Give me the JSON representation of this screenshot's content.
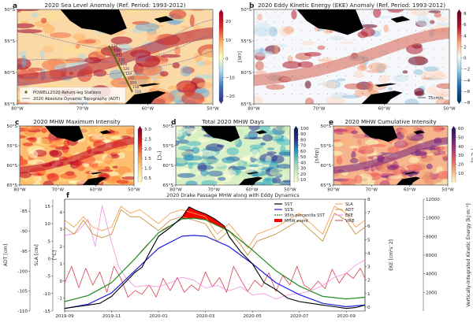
{
  "figure": {
    "lon_ticks": [
      "80°W",
      "70°W",
      "60°W",
      "50°W"
    ],
    "lat_ticks": [
      "50°S",
      "55°S",
      "60°S",
      "65°S"
    ]
  },
  "panels": {
    "a": {
      "label": "a",
      "title": "2020 Sea Level Anomaly (Ref. Period: 1993-2012)",
      "colorbar_label": "[cm]",
      "colorbar_ticks": [
        "20",
        "10",
        "0",
        "−10",
        "−20"
      ],
      "legend": [
        "POWELL2020 Return-leg Stations",
        "2020 Absolute Dynamic Topography (ADT)"
      ],
      "station_labels": [
        "136",
        "134",
        "132",
        "130",
        "128",
        "126",
        "124",
        "122",
        "120",
        "118",
        "116"
      ],
      "contour_labels": [
        "25 cm",
        "25 cm",
        "-50 cm",
        "0 cm",
        "25 cm"
      ]
    },
    "b": {
      "label": "b",
      "title": "2020 Eddy Kinetic Energy (EKE) Anomaly (Ref. Period: 1993-2012)",
      "colorbar_label": "[cm²s⁻²]",
      "colorbar_ticks": [
        "8",
        "6",
        "4",
        "2",
        "0",
        "−2",
        "−4",
        "−6",
        "−8"
      ],
      "vector_scale": "75cm/s"
    },
    "c": {
      "label": "c",
      "title": "2020 MHW Maximum Intensity",
      "colorbar_label": "[°C]",
      "colorbar_ticks": [
        "3.0",
        "2.5",
        "2.0",
        "1.5",
        "1.0",
        "0.5"
      ]
    },
    "d": {
      "label": "d",
      "title": "Total 2020 MHW Days",
      "colorbar_label": "[days]",
      "colorbar_ticks": [
        "100",
        "90",
        "80",
        "70",
        "60",
        "50",
        "40",
        "30",
        "20",
        "10"
      ]
    },
    "e": {
      "label": "e",
      "title": "2020 MHW Cumulative Intensity",
      "colorbar_label": "[°C·d]",
      "colorbar_ticks": [
        "60",
        "50",
        "40",
        "30",
        "20",
        "10"
      ]
    }
  },
  "chart_data": {
    "label": "f",
    "type": "line",
    "title": "2020 Drake Passage MHW along with Eddy Dynamics",
    "x_ticks": [
      "2019-09",
      "2019-11",
      "2020-01",
      "2020-03",
      "2020-05",
      "2020-07",
      "2020-09"
    ],
    "x_range_months": [
      0,
      12.8
    ],
    "axes": {
      "adt": {
        "label": "ADT [cm]",
        "ticks": [
          "-85",
          "-90",
          "-95",
          "-100",
          "-105",
          "-110"
        ],
        "range": [
          -110,
          -82
        ]
      },
      "sla": {
        "label": "SLA [cm]",
        "ticks": [
          "15",
          "10",
          "5",
          "0",
          "-5",
          "-10",
          "-15"
        ],
        "range": [
          -15,
          17
        ]
      },
      "sst": {
        "label": "[°C]",
        "ticks": [
          "4",
          "3",
          "2",
          "1",
          "0",
          "-1"
        ],
        "range": [
          -1.75,
          4.75
        ]
      },
      "eke": {
        "label": "EKE [cm²s⁻2]",
        "ticks": [
          "8",
          "7",
          "6",
          "5",
          "4",
          "3",
          "2",
          "1",
          "0"
        ],
        "range": [
          -0.3,
          8
        ]
      },
      "vike": {
        "label": "Vertically-Integrated Kinetic Energy [kJ·m⁻²]",
        "ticks": [
          "12000",
          "10000",
          "8000",
          "6000",
          "4000",
          "2000"
        ],
        "range": [
          0,
          12000
        ]
      }
    },
    "legend_left": [
      {
        "name": "SST",
        "color": "#000000"
      },
      {
        "name": "SSTc",
        "color": "#1f1fe0"
      },
      {
        "name": "95th percentile SST",
        "color": "#1a8a1a"
      },
      {
        "name": "MHW event",
        "color": "#ff0000"
      }
    ],
    "legend_right": [
      {
        "name": "SLA",
        "color": "#f5a050"
      },
      {
        "name": "ADT",
        "color": "#c89040"
      },
      {
        "name": "EKE",
        "color": "#f090e0"
      },
      {
        "name": "VIKE",
        "color": "#d84050"
      }
    ],
    "series": {
      "SSTc": {
        "axis": "sst",
        "x": [
          0,
          1,
          2,
          3,
          4,
          5,
          5.5,
          6,
          7,
          8,
          9,
          10,
          11,
          12,
          12.8
        ],
        "y": [
          -1.6,
          -1.35,
          -0.7,
          0.6,
          1.9,
          2.6,
          2.65,
          2.6,
          2.0,
          1.0,
          -0.1,
          -0.8,
          -1.3,
          -1.5,
          -1.4
        ]
      },
      "P95": {
        "axis": "sst",
        "x": [
          0,
          1,
          2,
          3,
          4,
          5,
          5.5,
          6,
          7,
          8,
          9,
          10,
          11,
          12,
          12.8
        ],
        "y": [
          -1.2,
          -0.85,
          -0.1,
          1.3,
          2.8,
          3.6,
          3.65,
          3.55,
          2.9,
          1.8,
          0.6,
          -0.3,
          -0.9,
          -1.05,
          -0.95
        ]
      },
      "SST": {
        "axis": "sst",
        "x": [
          0,
          0.5,
          1,
          1.5,
          2,
          2.5,
          3,
          3.3,
          3.6,
          4,
          4.5,
          5,
          5.3,
          5.6,
          6,
          6.4,
          6.8,
          7,
          7.5,
          8,
          8.5,
          9,
          9.5,
          10,
          10.5,
          11,
          11.5,
          12,
          12.4,
          12.8
        ],
        "y": [
          -1.6,
          -1.5,
          -1.4,
          -1.3,
          -0.9,
          -0.2,
          0.5,
          0.8,
          1.6,
          2.6,
          3.1,
          3.7,
          4.3,
          4.1,
          3.9,
          3.6,
          3.2,
          2.6,
          1.7,
          1.0,
          -0.1,
          -0.5,
          -1.0,
          -1.2,
          -1.3,
          -1.4,
          -1.5,
          -1.6,
          -1.55,
          -1.4
        ]
      },
      "SLA": {
        "axis": "sla",
        "x": [
          0,
          0.4,
          0.8,
          1.2,
          1.6,
          2,
          2.4,
          2.8,
          3.2,
          3.6,
          4,
          4.5,
          5,
          5.5,
          6,
          6.5,
          7,
          7.5,
          7.8,
          8.2,
          8.6,
          9,
          9.5,
          10,
          10.5,
          11,
          11.5,
          12,
          12.4,
          12.8
        ],
        "y": [
          11,
          9,
          12,
          9,
          8,
          9,
          15,
          13,
          14,
          12,
          10,
          13,
          14,
          13,
          12,
          7,
          10,
          6,
          3,
          7,
          8,
          9,
          11,
          13,
          10,
          7,
          15,
          13,
          9,
          11
        ]
      },
      "ADT": {
        "axis": "sla",
        "x": [
          0,
          0.4,
          0.8,
          1.2,
          1.6,
          2,
          2.4,
          2.8,
          3.2,
          3.6,
          4,
          4.5,
          5,
          5.5,
          6,
          6.5,
          7,
          7.5,
          7.8,
          8.2,
          8.6,
          9,
          9.5,
          10,
          10.5,
          11,
          11.5,
          12,
          12.4,
          12.8
        ],
        "y": [
          9,
          7,
          11,
          7,
          6,
          7,
          14,
          12,
          12,
          10,
          8,
          11,
          12,
          11,
          10,
          5,
          8,
          4,
          1,
          5,
          6,
          7,
          9,
          11,
          8,
          5,
          13,
          11,
          7,
          9
        ]
      },
      "EKE": {
        "axis": "eke",
        "x": [
          0,
          0.5,
          1,
          1.3,
          1.6,
          2,
          2.3,
          2.6,
          3,
          3.5,
          4,
          4.5,
          5,
          5.5,
          6,
          6.5,
          7,
          7.5,
          8,
          8.5,
          9,
          9.5,
          10,
          10.5,
          11,
          11.5,
          12,
          12.4,
          12.8
        ],
        "y": [
          5.3,
          5.5,
          6.5,
          4.5,
          7.5,
          4.8,
          3.0,
          2.2,
          1.5,
          1.6,
          1.5,
          1.8,
          2.2,
          2.0,
          1.4,
          1.6,
          1.2,
          1.5,
          0.9,
          1.0,
          0.6,
          0.9,
          1.0,
          1.2,
          1.6,
          2.2,
          2.5,
          3.1,
          3.5
        ]
      },
      "VIKE": {
        "axis": "vike",
        "x": [
          0,
          0.3,
          0.6,
          0.9,
          1.2,
          1.5,
          1.8,
          2.1,
          2.4,
          2.7,
          3,
          3.3,
          3.6,
          3.9,
          4.2,
          4.5,
          4.8,
          5.1,
          5.4,
          5.7,
          6,
          6.3,
          6.6,
          6.9,
          7.2,
          7.5,
          7.8,
          8.1,
          8.4,
          8.7,
          9,
          9.3,
          9.6,
          9.9,
          10.2,
          10.5,
          10.8,
          11.1,
          11.4,
          11.7,
          12,
          12.3,
          12.6,
          12.8
        ],
        "y": [
          3000,
          4800,
          2500,
          4600,
          2800,
          4200,
          2000,
          4800,
          3500,
          1500,
          2200,
          1800,
          2800,
          1500,
          3500,
          2200,
          3600,
          2000,
          2800,
          2200,
          4200,
          2600,
          3600,
          2000,
          4800,
          3400,
          2100,
          3300,
          2600,
          4100,
          2100,
          3800,
          2800,
          4800,
          2800,
          2300,
          3200,
          2400,
          4500,
          3000,
          4100,
          3500,
          4600,
          3500
        ]
      }
    },
    "mhw_events": [
      {
        "x_start": 3.2,
        "x_end": 3.55
      },
      {
        "x_start": 4.15,
        "x_end": 4.45
      },
      {
        "x_start": 5.0,
        "x_end": 7.2
      }
    ]
  }
}
